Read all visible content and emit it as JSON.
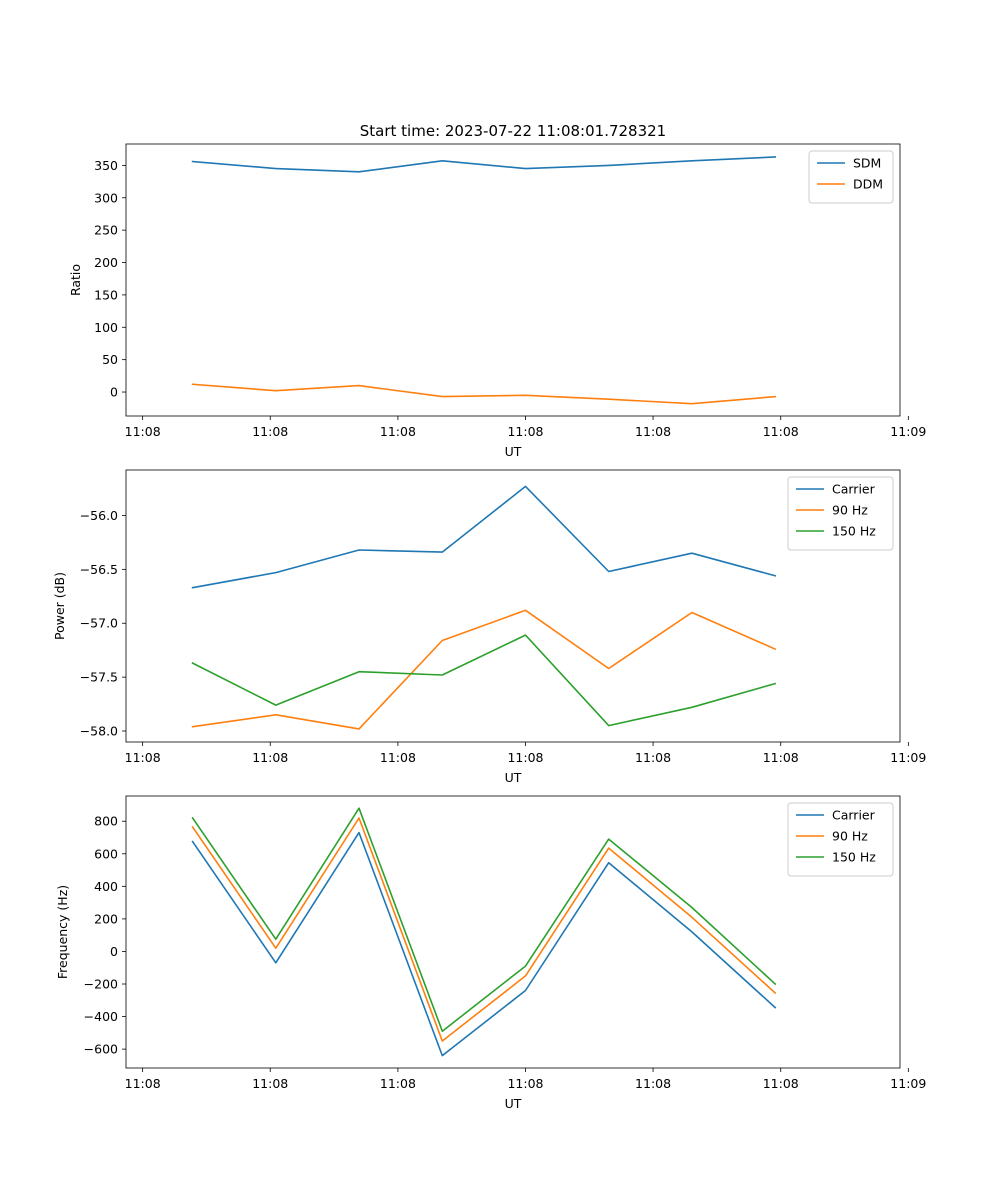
{
  "title": "Start time: 2023-07-22 11:08:01.728321",
  "chart_data": [
    {
      "type": "line",
      "xlabel": "UT",
      "ylabel": "Ratio",
      "x": [
        1,
        2,
        3,
        4,
        5,
        6,
        7,
        8
      ],
      "xlim": [
        0.2,
        9.5
      ],
      "xticks": [
        0.4,
        1.933,
        3.467,
        5.0,
        6.533,
        8.067,
        9.6
      ],
      "xtick_labels": [
        "11:08",
        "11:08",
        "11:08",
        "11:08",
        "11:08",
        "11:08",
        "11:09"
      ],
      "ylim": [
        -37,
        383
      ],
      "yticks": [
        0,
        50,
        100,
        150,
        200,
        250,
        300,
        350
      ],
      "ytick_labels": [
        "0",
        "50",
        "100",
        "150",
        "200",
        "250",
        "300",
        "350"
      ],
      "legend_position": "top-right",
      "series": [
        {
          "name": "SDM",
          "color": "#1f77b4",
          "values": [
            356,
            345,
            340,
            357,
            345,
            350,
            357,
            363
          ]
        },
        {
          "name": "DDM",
          "color": "#ff7f0e",
          "values": [
            12,
            2,
            10,
            -7,
            -5,
            -11,
            -18,
            -7
          ]
        }
      ]
    },
    {
      "type": "line",
      "xlabel": "UT",
      "ylabel": "Power (dB)",
      "x": [
        1,
        2,
        3,
        4,
        5,
        6,
        7,
        8
      ],
      "xlim": [
        0.2,
        9.5
      ],
      "xticks": [
        0.4,
        1.933,
        3.467,
        5.0,
        6.533,
        8.067,
        9.6
      ],
      "xtick_labels": [
        "11:08",
        "11:08",
        "11:08",
        "11:08",
        "11:08",
        "11:08",
        "11:09"
      ],
      "ylim": [
        -58.102,
        -55.578
      ],
      "yticks": [
        -58.0,
        -57.5,
        -57.0,
        -56.5,
        -56.0
      ],
      "ytick_labels": [
        "−58.0",
        "−57.5",
        "−57.0",
        "−56.5",
        "−56.0"
      ],
      "legend_position": "top-right",
      "series": [
        {
          "name": "Carrier",
          "color": "#1f77b4",
          "values": [
            -56.67,
            -56.53,
            -56.32,
            -56.34,
            -55.73,
            -56.52,
            -56.35,
            -56.56
          ]
        },
        {
          "name": "90 Hz",
          "color": "#ff7f0e",
          "values": [
            -57.96,
            -57.85,
            -57.98,
            -57.16,
            -56.88,
            -57.42,
            -56.9,
            -57.24
          ]
        },
        {
          "name": "150 Hz",
          "color": "#2ca02c",
          "values": [
            -57.37,
            -57.76,
            -57.45,
            -57.48,
            -57.11,
            -57.95,
            -57.78,
            -57.56
          ]
        }
      ]
    },
    {
      "type": "line",
      "xlabel": "UT",
      "ylabel": "Frequency (Hz)",
      "x": [
        1,
        2,
        3,
        4,
        5,
        6,
        7,
        8
      ],
      "xlim": [
        0.2,
        9.5
      ],
      "xticks": [
        0.4,
        1.933,
        3.467,
        5.0,
        6.533,
        8.067,
        9.6
      ],
      "xtick_labels": [
        "11:08",
        "11:08",
        "11:08",
        "11:08",
        "11:08",
        "11:08",
        "11:09"
      ],
      "ylim": [
        -716,
        955
      ],
      "yticks": [
        -600,
        -400,
        -200,
        0,
        200,
        400,
        600,
        800
      ],
      "ytick_labels": [
        "−600",
        "−400",
        "−200",
        "0",
        "200",
        "400",
        "600",
        "800"
      ],
      "legend_position": "top-right",
      "series": [
        {
          "name": "Carrier",
          "color": "#1f77b4",
          "values": [
            675,
            -70,
            730,
            -640,
            -240,
            545,
            120,
            -345
          ]
        },
        {
          "name": "90 Hz",
          "color": "#ff7f0e",
          "values": [
            765,
            20,
            820,
            -550,
            -150,
            635,
            210,
            -255
          ]
        },
        {
          "name": "150 Hz",
          "color": "#2ca02c",
          "values": [
            820,
            75,
            880,
            -490,
            -90,
            690,
            270,
            -200
          ]
        }
      ]
    }
  ]
}
